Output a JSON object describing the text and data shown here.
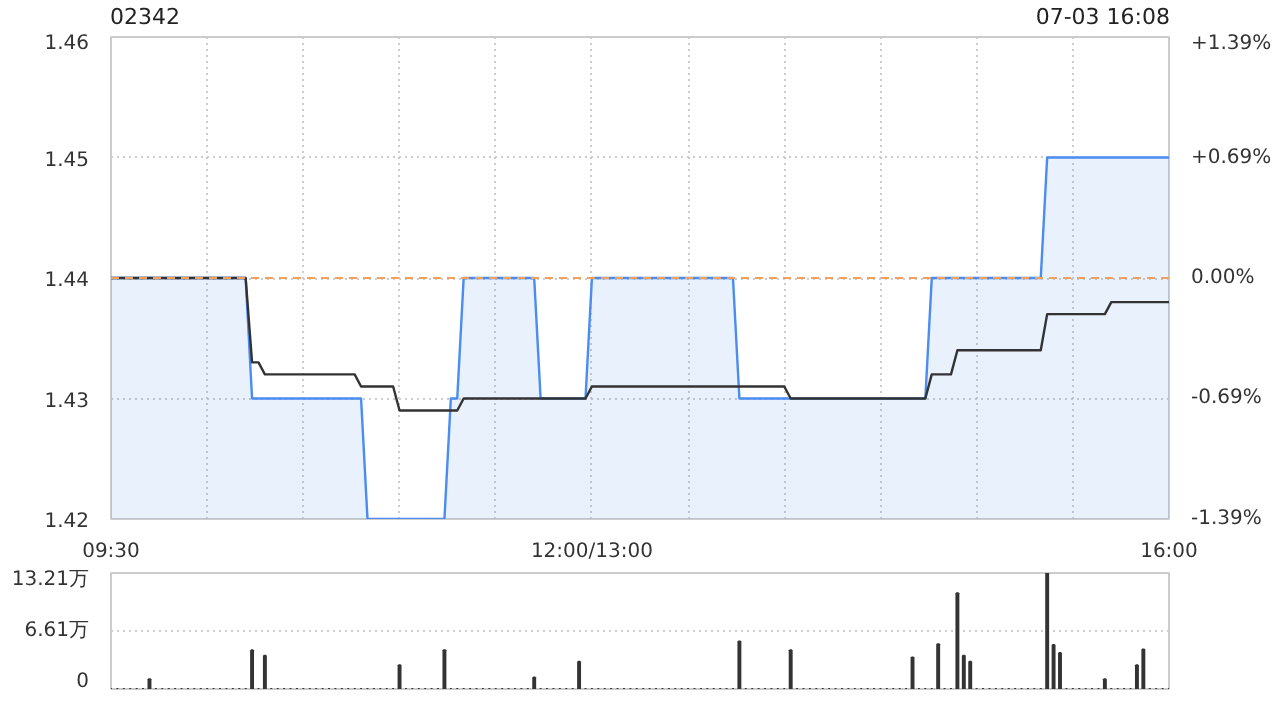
{
  "chart_data": [
    {
      "type": "area",
      "title": "02342",
      "annotations": [
        "07-03 16:08"
      ],
      "categories": [
        "09:30",
        null,
        null,
        null,
        null,
        null,
        null,
        null,
        null,
        null,
        null,
        null,
        null,
        null,
        null,
        null,
        null,
        null,
        null,
        null,
        null,
        null,
        null,
        null,
        null,
        null,
        null,
        null,
        null,
        null,
        null,
        null,
        null,
        null,
        null,
        null,
        null,
        null,
        null,
        null,
        null,
        null,
        null,
        null,
        null,
        null,
        null,
        null,
        null,
        null,
        null,
        null,
        null,
        null,
        null,
        null,
        null,
        null,
        null,
        null,
        null,
        null,
        null,
        null,
        null,
        null,
        null,
        null,
        null,
        null,
        null,
        null,
        null,
        null,
        null,
        "12:00/13:00",
        null,
        null,
        null,
        null,
        null,
        null,
        null,
        null,
        null,
        null,
        null,
        null,
        null,
        null,
        null,
        null,
        null,
        null,
        null,
        null,
        null,
        null,
        null,
        null,
        null,
        null,
        null,
        null,
        null,
        null,
        null,
        null,
        null,
        null,
        null,
        null,
        null,
        null,
        null,
        null,
        null,
        null,
        null,
        null,
        null,
        null,
        null,
        null,
        null,
        null,
        null,
        null,
        null,
        null,
        null,
        null,
        null,
        null,
        null,
        null,
        null,
        null,
        null,
        null,
        null,
        null,
        null,
        null,
        null,
        null,
        null,
        null,
        null,
        null,
        null,
        null,
        null,
        null,
        null,
        null,
        null,
        null,
        null,
        null,
        null,
        null,
        null,
        null,
        null,
        "16:00"
      ],
      "ylim": [
        1.42,
        1.46
      ],
      "yticks": [
        1.42,
        1.43,
        1.44,
        1.45,
        1.46
      ],
      "y2lim": [
        -1.39,
        1.39
      ],
      "y2ticks": [
        {
          "value": -1.39,
          "label": "-1.39%"
        },
        {
          "value": -0.69,
          "label": "-0.69%"
        },
        {
          "value": 0,
          "label": "0.00%"
        },
        {
          "value": 0.69,
          "label": "+0.69%"
        },
        {
          "value": 1.39,
          "label": "+1.39%"
        }
      ],
      "grid": true,
      "ref_lines": [
        {
          "axis": "y",
          "value": 1.44,
          "color": "#f5a05a",
          "line_style": "dashed"
        }
      ],
      "series": [
        {
          "color": "#4a8cf0",
          "values": [
            1.44,
            1.44,
            1.44,
            1.44,
            1.44,
            1.44,
            1.44,
            1.44,
            1.44,
            1.44,
            1.44,
            1.44,
            1.44,
            1.44,
            1.44,
            1.44,
            1.44,
            1.44,
            1.44,
            1.44,
            1.44,
            1.44,
            1.43,
            1.43,
            1.43,
            1.43,
            1.43,
            1.43,
            1.43,
            1.43,
            1.43,
            1.43,
            1.43,
            1.43,
            1.43,
            1.43,
            1.43,
            1.43,
            1.43,
            1.43,
            1.42,
            1.42,
            1.42,
            1.42,
            1.42,
            1.42,
            1.42,
            1.42,
            1.42,
            1.42,
            1.42,
            1.42,
            1.42,
            1.43,
            1.43,
            1.44,
            1.44,
            1.44,
            1.44,
            1.44,
            1.44,
            1.44,
            1.44,
            1.44,
            1.44,
            1.44,
            1.44,
            1.43,
            1.43,
            1.43,
            1.43,
            1.43,
            1.43,
            1.43,
            1.43,
            1.44,
            1.44,
            1.44,
            1.44,
            1.44,
            1.44,
            1.44,
            1.44,
            1.44,
            1.44,
            1.44,
            1.44,
            1.44,
            1.44,
            1.44,
            1.44,
            1.44,
            1.44,
            1.44,
            1.44,
            1.44,
            1.44,
            1.44,
            1.43,
            1.43,
            1.43,
            1.43,
            1.43,
            1.43,
            1.43,
            1.43,
            1.43,
            1.43,
            1.43,
            1.43,
            1.43,
            1.43,
            1.43,
            1.43,
            1.43,
            1.43,
            1.43,
            1.43,
            1.43,
            1.43,
            1.43,
            1.43,
            1.43,
            1.43,
            1.43,
            1.43,
            1.43,
            1.43,
            1.44,
            1.44,
            1.44,
            1.44,
            1.44,
            1.44,
            1.44,
            1.44,
            1.44,
            1.44,
            1.44,
            1.44,
            1.44,
            1.44,
            1.44,
            1.44,
            1.44,
            1.44,
            1.45,
            1.45,
            1.45,
            1.45,
            1.45,
            1.45,
            1.45,
            1.45,
            1.45,
            1.45,
            1.45,
            1.45,
            1.45,
            1.45,
            1.45,
            1.45,
            1.45,
            1.45,
            1.45,
            1.45
          ]
        },
        {
          "type": "line",
          "color": "#333333",
          "values": [
            1.44,
            1.44,
            1.44,
            1.44,
            1.44,
            1.44,
            1.44,
            1.44,
            1.44,
            1.44,
            1.44,
            1.44,
            1.44,
            1.44,
            1.44,
            1.44,
            1.44,
            1.44,
            1.44,
            1.44,
            1.44,
            1.44,
            1.433,
            1.433,
            1.432,
            1.432,
            1.432,
            1.432,
            1.432,
            1.432,
            1.432,
            1.432,
            1.432,
            1.432,
            1.432,
            1.432,
            1.432,
            1.432,
            1.432,
            1.431,
            1.431,
            1.431,
            1.431,
            1.431,
            1.431,
            1.429,
            1.429,
            1.429,
            1.429,
            1.429,
            1.429,
            1.429,
            1.429,
            1.429,
            1.429,
            1.43,
            1.43,
            1.43,
            1.43,
            1.43,
            1.43,
            1.43,
            1.43,
            1.43,
            1.43,
            1.43,
            1.43,
            1.43,
            1.43,
            1.43,
            1.43,
            1.43,
            1.43,
            1.43,
            1.43,
            1.431,
            1.431,
            1.431,
            1.431,
            1.431,
            1.431,
            1.431,
            1.431,
            1.431,
            1.431,
            1.431,
            1.431,
            1.431,
            1.431,
            1.431,
            1.431,
            1.431,
            1.431,
            1.431,
            1.431,
            1.431,
            1.431,
            1.431,
            1.431,
            1.431,
            1.431,
            1.431,
            1.431,
            1.431,
            1.431,
            1.431,
            1.43,
            1.43,
            1.43,
            1.43,
            1.43,
            1.43,
            1.43,
            1.43,
            1.43,
            1.43,
            1.43,
            1.43,
            1.43,
            1.43,
            1.43,
            1.43,
            1.43,
            1.43,
            1.43,
            1.43,
            1.43,
            1.43,
            1.432,
            1.432,
            1.432,
            1.432,
            1.434,
            1.434,
            1.434,
            1.434,
            1.434,
            1.434,
            1.434,
            1.434,
            1.434,
            1.434,
            1.434,
            1.434,
            1.434,
            1.434,
            1.437,
            1.437,
            1.437,
            1.437,
            1.437,
            1.437,
            1.437,
            1.437,
            1.437,
            1.437,
            1.438,
            1.438,
            1.438,
            1.438,
            1.438,
            1.438,
            1.438,
            1.438,
            1.438,
            1.438
          ]
        }
      ]
    },
    {
      "type": "bar",
      "color": "#333333",
      "tick_labels": "y",
      "grid": "y",
      "categories": [
        null,
        null,
        null,
        null,
        null,
        null,
        null,
        null,
        null,
        null,
        null,
        null,
        null,
        null,
        null,
        null,
        null,
        null,
        null,
        null,
        null,
        null,
        null,
        null,
        null,
        null,
        null,
        null,
        null,
        null,
        null,
        null,
        null,
        null,
        null,
        null,
        null,
        null,
        null,
        null,
        null,
        null,
        null,
        null,
        null,
        null,
        null,
        null,
        null,
        null,
        null,
        null,
        null,
        null,
        null,
        null,
        null,
        null,
        null,
        null,
        null,
        null,
        null,
        null,
        null,
        null,
        null,
        null,
        null,
        null,
        null,
        null,
        null,
        null,
        null,
        null,
        null,
        null,
        null,
        null,
        null,
        null,
        null,
        null,
        null,
        null,
        null,
        null,
        null,
        null,
        null,
        null,
        null,
        null,
        null,
        null,
        null,
        null,
        null,
        null,
        null,
        null,
        null,
        null,
        null,
        null,
        null,
        null,
        null,
        null,
        null,
        null,
        null,
        null,
        null,
        null,
        null,
        null,
        null,
        null,
        null,
        null,
        null,
        null,
        null,
        null,
        null,
        null,
        null,
        null,
        null,
        null,
        null,
        null,
        null,
        null,
        null,
        null,
        null,
        null,
        null,
        null,
        null,
        null,
        null,
        null,
        null,
        null,
        null,
        null,
        null,
        null,
        null,
        null,
        null,
        null,
        null,
        null,
        null,
        null,
        null,
        null,
        null,
        null,
        null,
        null
      ],
      "ylim": [
        0,
        13.21
      ],
      "yticks": [
        0,
        {
          "value": 6.61,
          "label": "6.61万"
        },
        {
          "value": 13.21,
          "label": "13.21万"
        }
      ],
      "values": [
        0,
        0,
        0,
        0,
        0,
        0,
        1.1,
        0,
        0,
        0,
        0,
        0,
        0,
        0,
        0,
        0,
        0,
        0,
        0,
        0,
        0,
        0,
        4.4,
        0,
        3.8,
        0,
        0,
        0,
        0,
        0,
        0,
        0,
        0,
        0,
        0,
        0,
        0,
        0,
        0,
        0,
        0,
        0,
        0,
        0,
        0,
        2.7,
        0,
        0,
        0,
        0,
        0,
        0,
        4.4,
        0,
        0,
        0,
        0,
        0,
        0,
        0,
        0,
        0,
        0,
        0,
        0,
        0,
        1.3,
        0,
        0,
        0,
        0,
        0,
        0,
        3.1,
        0,
        0,
        0,
        0,
        0,
        0,
        0,
        0,
        0,
        0,
        0,
        0,
        0,
        0,
        0,
        0,
        0,
        0,
        0,
        0,
        0,
        0,
        0,
        0,
        5.4,
        0,
        0,
        0,
        0,
        0,
        0,
        0,
        4.4,
        0,
        0,
        0,
        0,
        0,
        0,
        0,
        0,
        0,
        0,
        0,
        0,
        0,
        0,
        0,
        0,
        0,
        0,
        3.6,
        0,
        0,
        0,
        5.1,
        0,
        0,
        10.9,
        3.8,
        3.1,
        0,
        0,
        0,
        0,
        0,
        0,
        0,
        0,
        0,
        0,
        0,
        13.2,
        5.0,
        4.1,
        0,
        0,
        0,
        0,
        0,
        0,
        1.1,
        0,
        0,
        0,
        0,
        2.7,
        4.5,
        0,
        0,
        0,
        0
      ]
    }
  ]
}
